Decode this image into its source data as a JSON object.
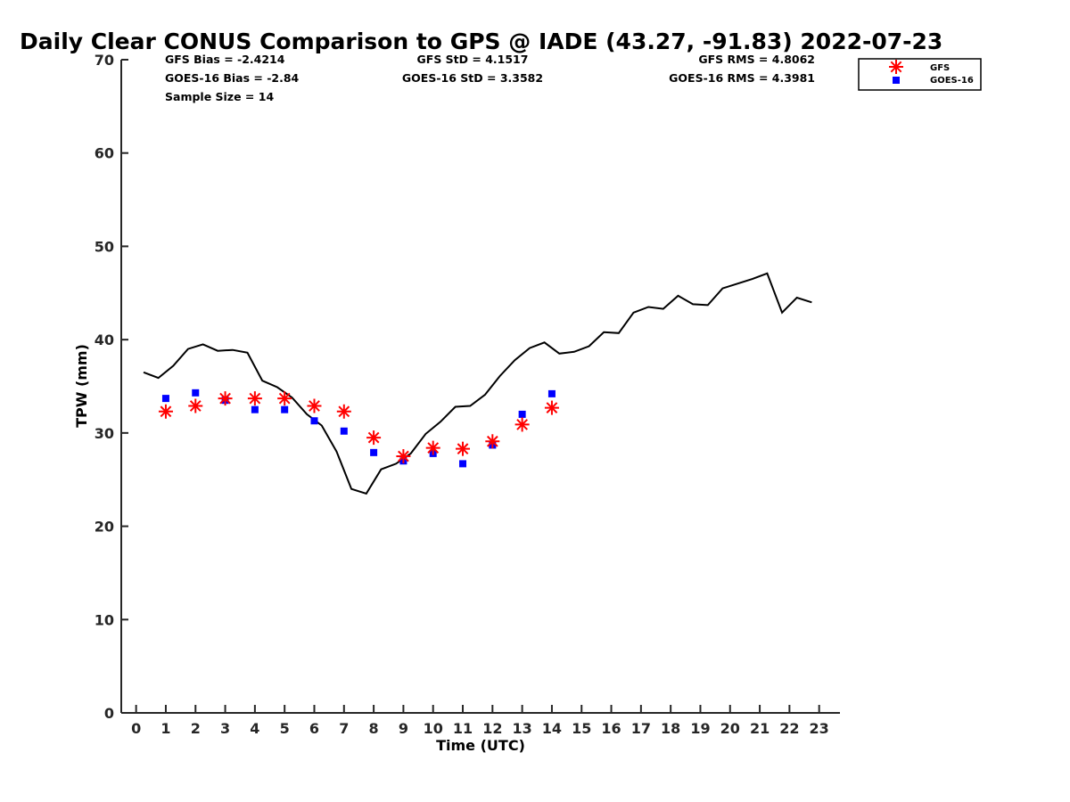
{
  "chart_data": {
    "type": "line",
    "title": "Daily Clear CONUS Comparison to GPS @ IADE (43.27, -91.83) 2022-07-23",
    "xlabel": "Time (UTC)",
    "ylabel": "TPW (mm)",
    "xlim": [
      -0.5,
      23.7
    ],
    "ylim": [
      0,
      70
    ],
    "xticks": [
      "0",
      "1",
      "2",
      "3",
      "4",
      "5",
      "6",
      "7",
      "8",
      "9",
      "10",
      "11",
      "12",
      "13",
      "14",
      "15",
      "16",
      "17",
      "18",
      "19",
      "20",
      "21",
      "22",
      "23"
    ],
    "yticks": [
      "0",
      "10",
      "20",
      "30",
      "40",
      "50",
      "60",
      "70"
    ],
    "grid": false,
    "legend_position": "top-right",
    "stats": {
      "gfs_bias": "GFS Bias = -2.4214",
      "goes_bias": "GOES-16 Bias = -2.84",
      "sample_size": "Sample Size = 14",
      "gfs_std": "GFS StD = 4.1517",
      "goes_std": "GOES-16 StD = 3.3582",
      "gfs_rms": "GFS RMS = 4.8062",
      "goes_rms": "GOES-16 RMS = 4.3981"
    },
    "series": [
      {
        "key": "gps",
        "type": "line",
        "color": "#000000",
        "x": [
          0.25,
          0.75,
          1.25,
          1.75,
          2.25,
          2.75,
          3.25,
          3.75,
          4.25,
          4.75,
          5.25,
          5.75,
          6.25,
          6.75,
          7.25,
          7.75,
          8.25,
          8.75,
          9.25,
          9.75,
          10.25,
          10.75,
          11.25,
          11.75,
          12.25,
          12.75,
          13.25,
          13.75,
          14.25,
          14.75,
          15.25,
          15.75,
          16.25,
          16.75,
          17.25,
          17.75,
          18.25,
          18.75,
          19.25,
          19.75,
          20.25,
          20.75,
          21.25,
          21.75,
          22.25,
          22.75
        ],
        "y": [
          36.5,
          35.9,
          37.2,
          39.0,
          39.5,
          38.8,
          38.9,
          38.6,
          35.6,
          34.9,
          33.8,
          32.0,
          30.8,
          28.0,
          24.0,
          23.5,
          26.1,
          26.7,
          27.8,
          29.9,
          31.2,
          32.8,
          32.9,
          34.1,
          36.1,
          37.8,
          39.1,
          39.7,
          38.5,
          38.7,
          39.3,
          40.8,
          40.7,
          42.9,
          43.5,
          43.3,
          44.7,
          43.8,
          43.7,
          45.5,
          46.0,
          46.5,
          47.1,
          42.9,
          44.5,
          44.0
        ]
      },
      {
        "key": "gfs",
        "name": "GFS",
        "type": "scatter",
        "marker": "asterisk",
        "color": "#ff0000",
        "x": [
          1,
          2,
          3,
          4,
          5,
          6,
          7,
          8,
          9,
          10,
          11,
          12,
          13,
          14
        ],
        "y": [
          32.3,
          32.9,
          33.7,
          33.7,
          33.7,
          32.9,
          32.3,
          29.5,
          27.5,
          28.4,
          28.3,
          29.1,
          30.9,
          32.7
        ]
      },
      {
        "key": "goes",
        "name": "GOES-16",
        "type": "scatter",
        "marker": "square",
        "color": "#0000ff",
        "x": [
          1,
          2,
          3,
          4,
          5,
          6,
          7,
          8,
          9,
          10,
          11,
          12,
          13,
          14
        ],
        "y": [
          33.7,
          34.3,
          33.5,
          32.5,
          32.5,
          31.3,
          30.2,
          27.9,
          27.0,
          27.8,
          26.7,
          28.7,
          32.0,
          34.2
        ]
      }
    ]
  }
}
